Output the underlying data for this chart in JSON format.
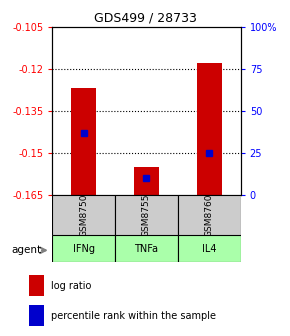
{
  "title": "GDS499 / 28733",
  "samples": [
    "IFNg",
    "TNFa",
    "IL4"
  ],
  "gsm_labels": [
    "GSM8750",
    "GSM8755",
    "GSM8760"
  ],
  "log_ratios": [
    -0.127,
    -0.155,
    -0.118
  ],
  "percentile_ranks": [
    0.37,
    0.1,
    0.25
  ],
  "ylim_left": [
    -0.165,
    -0.105
  ],
  "ylim_right": [
    0,
    100
  ],
  "left_ticks": [
    -0.165,
    -0.15,
    -0.135,
    -0.12,
    -0.105
  ],
  "right_ticks": [
    0,
    25,
    50,
    75,
    100
  ],
  "dotted_lines": [
    -0.12,
    -0.135,
    -0.15
  ],
  "bar_color": "#cc0000",
  "percentile_color": "#0000cc",
  "gsm_bg": "#cccccc",
  "agent_bg_colors": [
    "#aaffaa",
    "#aaffaa",
    "#aaffaa"
  ],
  "agent_label": "agent",
  "legend_log_ratio": "log ratio",
  "legend_percentile": "percentile rank within the sample",
  "bar_width": 0.4
}
